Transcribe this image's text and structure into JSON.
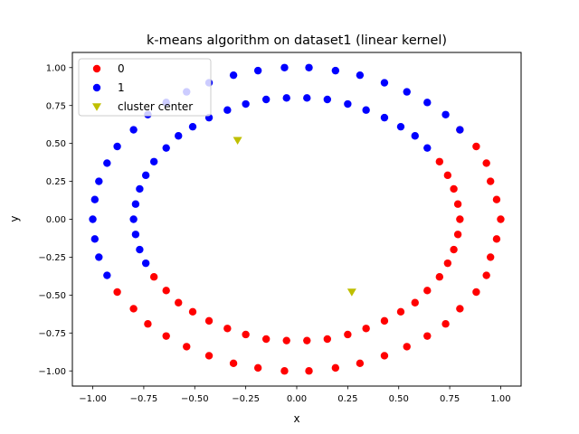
{
  "chart_data": {
    "type": "scatter",
    "title": "k-means algorithm on dataset1 (linear kernel)",
    "xlabel": "x",
    "ylabel": "y",
    "xlim": [
      -1.1,
      1.1
    ],
    "ylim": [
      -1.1,
      1.1
    ],
    "xticks": [
      "−1.00",
      "−0.75",
      "−0.50",
      "−0.25",
      "0.00",
      "0.25",
      "0.50",
      "0.75",
      "1.00"
    ],
    "xtick_values": [
      -1.0,
      -0.75,
      -0.5,
      -0.25,
      0.0,
      0.25,
      0.5,
      0.75,
      1.0
    ],
    "yticks": [
      "−1.00",
      "−0.75",
      "−0.50",
      "−0.25",
      "0.00",
      "0.25",
      "0.50",
      "0.75",
      "1.00"
    ],
    "ytick_values": [
      -1.0,
      -0.75,
      -0.5,
      -0.25,
      0.0,
      0.25,
      0.5,
      0.75,
      1.0
    ],
    "grid": false,
    "legend_position": "top-left",
    "series": [
      {
        "name": "0",
        "color": "#ff0000",
        "marker": "circle",
        "points": [
          [
            1.0,
            0.0
          ],
          [
            0.98,
            -0.13
          ],
          [
            0.95,
            -0.25
          ],
          [
            0.93,
            -0.37
          ],
          [
            0.88,
            -0.48
          ],
          [
            0.8,
            -0.59
          ],
          [
            0.73,
            -0.69
          ],
          [
            0.64,
            -0.77
          ],
          [
            0.54,
            -0.84
          ],
          [
            0.43,
            -0.9
          ],
          [
            0.31,
            -0.95
          ],
          [
            0.19,
            -0.98
          ],
          [
            0.06,
            -1.0
          ],
          [
            -0.06,
            -1.0
          ],
          [
            -0.19,
            -0.98
          ],
          [
            -0.31,
            -0.95
          ],
          [
            -0.43,
            -0.9
          ],
          [
            -0.54,
            -0.84
          ],
          [
            -0.64,
            -0.77
          ],
          [
            -0.73,
            -0.69
          ],
          [
            -0.8,
            -0.59
          ],
          [
            -0.88,
            -0.48
          ],
          [
            0.98,
            0.13
          ],
          [
            0.95,
            0.25
          ],
          [
            0.93,
            0.37
          ],
          [
            0.88,
            0.48
          ],
          [
            0.8,
            0.59
          ],
          [
            0.8,
            0.0
          ],
          [
            0.79,
            -0.1
          ],
          [
            0.77,
            -0.2
          ],
          [
            0.74,
            -0.29
          ],
          [
            0.7,
            -0.38
          ],
          [
            0.64,
            -0.47
          ],
          [
            0.58,
            -0.55
          ],
          [
            0.51,
            -0.61
          ],
          [
            0.43,
            -0.67
          ],
          [
            0.34,
            -0.72
          ],
          [
            0.25,
            -0.76
          ],
          [
            0.15,
            -0.79
          ],
          [
            0.05,
            -0.8
          ],
          [
            -0.05,
            -0.8
          ],
          [
            -0.15,
            -0.79
          ],
          [
            -0.25,
            -0.76
          ],
          [
            -0.34,
            -0.72
          ],
          [
            -0.43,
            -0.67
          ],
          [
            -0.51,
            -0.61
          ],
          [
            -0.58,
            -0.55
          ],
          [
            -0.64,
            -0.47
          ],
          [
            -0.7,
            -0.38
          ],
          [
            0.79,
            0.1
          ],
          [
            0.77,
            0.2
          ],
          [
            0.74,
            0.29
          ],
          [
            0.7,
            0.38
          ]
        ]
      },
      {
        "name": "1",
        "color": "#0000ff",
        "marker": "circle",
        "points": [
          [
            -1.0,
            0.0
          ],
          [
            -0.99,
            0.13
          ],
          [
            -0.97,
            0.25
          ],
          [
            -0.93,
            0.37
          ],
          [
            -0.88,
            0.48
          ],
          [
            -0.8,
            0.59
          ],
          [
            -0.73,
            0.69
          ],
          [
            -0.64,
            0.77
          ],
          [
            -0.54,
            0.84
          ],
          [
            -0.43,
            0.9
          ],
          [
            -0.31,
            0.95
          ],
          [
            -0.19,
            0.98
          ],
          [
            -0.06,
            1.0
          ],
          [
            0.06,
            1.0
          ],
          [
            0.19,
            0.98
          ],
          [
            0.31,
            0.95
          ],
          [
            0.43,
            0.9
          ],
          [
            0.54,
            0.84
          ],
          [
            0.64,
            0.77
          ],
          [
            0.73,
            0.69
          ],
          [
            0.8,
            0.59
          ],
          [
            -0.99,
            -0.13
          ],
          [
            -0.97,
            -0.25
          ],
          [
            -0.93,
            -0.37
          ],
          [
            -0.8,
            0.0
          ],
          [
            -0.79,
            0.1
          ],
          [
            -0.77,
            0.2
          ],
          [
            -0.74,
            0.29
          ],
          [
            -0.7,
            0.38
          ],
          [
            -0.64,
            0.47
          ],
          [
            -0.58,
            0.55
          ],
          [
            -0.51,
            0.61
          ],
          [
            -0.43,
            0.67
          ],
          [
            -0.34,
            0.72
          ],
          [
            -0.25,
            0.76
          ],
          [
            -0.15,
            0.79
          ],
          [
            -0.05,
            0.8
          ],
          [
            0.05,
            0.8
          ],
          [
            0.15,
            0.79
          ],
          [
            0.25,
            0.76
          ],
          [
            0.34,
            0.72
          ],
          [
            0.43,
            0.67
          ],
          [
            0.51,
            0.61
          ],
          [
            0.58,
            0.55
          ],
          [
            0.64,
            0.47
          ],
          [
            -0.79,
            -0.1
          ],
          [
            -0.77,
            -0.2
          ],
          [
            -0.74,
            -0.29
          ]
        ]
      },
      {
        "name": "cluster center",
        "color": "#bfbf00",
        "marker": "triangle-down",
        "points": [
          [
            -0.29,
            0.52
          ],
          [
            0.27,
            -0.48
          ]
        ]
      }
    ]
  }
}
